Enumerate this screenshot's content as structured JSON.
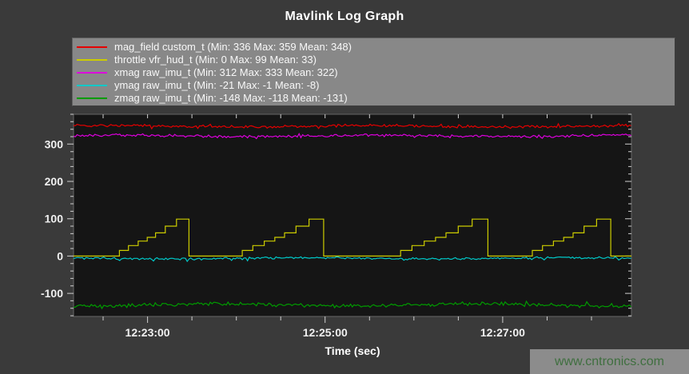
{
  "figure": {
    "title": "Mavlink Log Graph",
    "background_color": "#3a3a3a",
    "plot_background_color": "#151515"
  },
  "legend": {
    "background_color": "#888888",
    "text_color": "#f8f8f8"
  },
  "watermark": {
    "text": "www.cntronics.com",
    "color": "#3f6f3f",
    "background_color": "#8c8c8c"
  },
  "chart_data": {
    "type": "line",
    "title": "Mavlink Log Graph",
    "xlabel": "Time (sec)",
    "ylabel": "",
    "grid": false,
    "legend_position": "top",
    "x_axis": {
      "start_time": "12:22:10",
      "span_seconds": 377,
      "tick_interval_seconds": 30,
      "first_tick_offset_seconds": 20,
      "labeled_ticks": [
        {
          "t": 50,
          "label": "12:23:00"
        },
        {
          "t": 170,
          "label": "12:25:00"
        },
        {
          "t": 290,
          "label": "12:27:00"
        }
      ]
    },
    "y_axis": {
      "range": [
        -162,
        380
      ],
      "major_ticks": [
        -100,
        0,
        100,
        200,
        300
      ],
      "minor_tick_step": 20
    },
    "series": [
      {
        "name": "mag_field",
        "legend_label": "mag_field custom_t (Min: 336 Max: 359 Mean: 348)",
        "color": "#e60000",
        "type": "noisy",
        "min": 336,
        "max": 359,
        "mean": 348,
        "amplitude": 5,
        "spike_bias": 0,
        "seed": 7
      },
      {
        "name": "throttle",
        "legend_label": "throttle vfr_hud_t (Min: 0 Max: 99 Mean: 33)",
        "color": "#cccc00",
        "type": "staircase",
        "min": 0,
        "max": 99,
        "mean": 33,
        "baseline": 0,
        "step_values": [
          15,
          28,
          40,
          50,
          62,
          80,
          99
        ],
        "step_fractions": [
          0,
          0.13,
          0.27,
          0.4,
          0.52,
          0.66,
          0.82
        ],
        "cycles": [
          {
            "rise": 31,
            "drop": 78
          },
          {
            "rise": 114,
            "drop": 169
          },
          {
            "rise": 221,
            "drop": 280
          },
          {
            "rise": 310,
            "drop": 363
          }
        ]
      },
      {
        "name": "xmag",
        "legend_label": "xmag raw_imu_t (Min: 312 Max: 333 Mean: 322)",
        "color": "#dd00dd",
        "type": "noisy",
        "min": 312,
        "max": 333,
        "mean": 322,
        "amplitude": 5,
        "spike_bias": 0,
        "seed": 13
      },
      {
        "name": "ymag",
        "legend_label": "ymag raw_imu_t (Min: -21 Max: -1 Mean: -8)",
        "color": "#00c8c8",
        "type": "noisy",
        "min": -21,
        "max": -1,
        "mean": -6,
        "amplitude": 4,
        "spike_bias": -1,
        "seed": 21
      },
      {
        "name": "zmag",
        "legend_label": "zmag raw_imu_t (Min: -148 Max: -118 Mean: -131)",
        "color": "#009b00",
        "type": "noisy",
        "min": -148,
        "max": -118,
        "mean": -131,
        "amplitude": 7,
        "spike_bias": 0,
        "seed": 42
      }
    ]
  }
}
